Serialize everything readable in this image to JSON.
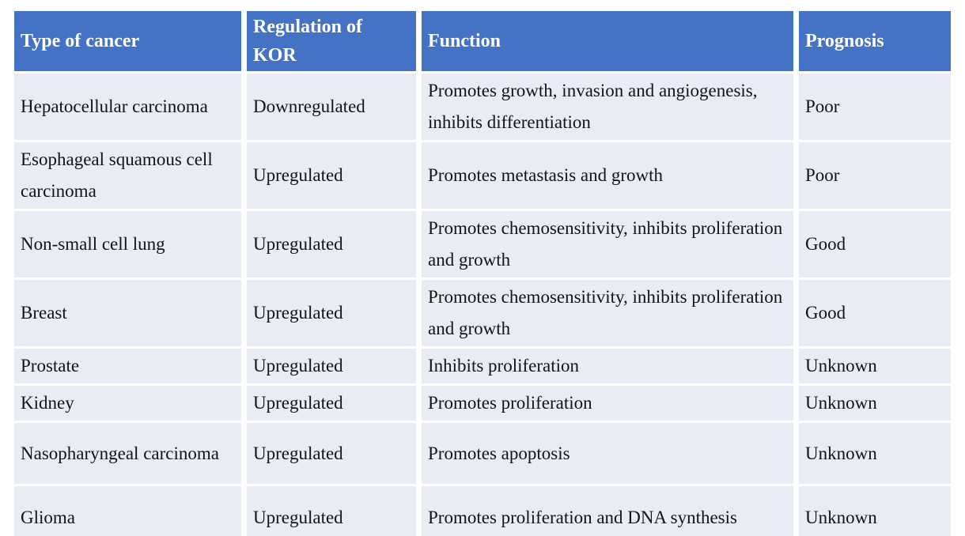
{
  "colors": {
    "header_bg": "#4472C4",
    "header_text": "#FFFFFF",
    "row_bg": "#E9EBF5",
    "body_text": "#141414",
    "gutter": "#FFFFFF"
  },
  "table": {
    "headers": [
      "Type of cancer",
      "Regulation of KOR",
      "Function",
      "Prognosis"
    ],
    "rows": [
      [
        "Hepatocellular carcinoma",
        "Downregulated",
        "Promotes growth, invasion and angiogenesis, inhibits differentiation",
        "Poor"
      ],
      [
        "Esophageal squamous cell carcinoma",
        "Upregulated",
        "Promotes metastasis and growth",
        "Poor"
      ],
      [
        "Non-small cell lung",
        "Upregulated",
        "Promotes chemosensitivity, inhibits proliferation and growth",
        "Good"
      ],
      [
        "Breast",
        "Upregulated",
        "Promotes chemosensitivity, inhibits proliferation and growth",
        "Good"
      ],
      [
        "Prostate",
        "Upregulated",
        "Inhibits proliferation",
        "Unknown"
      ],
      [
        "Kidney",
        "Upregulated",
        "Promotes proliferation",
        "Unknown"
      ],
      [
        "Nasopharyngeal carcinoma",
        "Upregulated",
        "Promotes apoptosis",
        "Unknown"
      ],
      [
        "Glioma",
        "Upregulated",
        "Promotes proliferation and DNA synthesis",
        "Unknown"
      ]
    ]
  },
  "chart_data": {
    "type": "table",
    "title": "",
    "columns": [
      "Type of cancer",
      "Regulation of KOR",
      "Function",
      "Prognosis"
    ],
    "rows": [
      [
        "Hepatocellular carcinoma",
        "Downregulated",
        "Promotes growth, invasion and angiogenesis, inhibits differentiation",
        "Poor"
      ],
      [
        "Esophageal squamous cell carcinoma",
        "Upregulated",
        "Promotes metastasis and growth",
        "Poor"
      ],
      [
        "Non-small cell lung",
        "Upregulated",
        "Promotes chemosensitivity, inhibits proliferation and growth",
        "Good"
      ],
      [
        "Breast",
        "Upregulated",
        "Promotes chemosensitivity, inhibits proliferation and growth",
        "Good"
      ],
      [
        "Prostate",
        "Upregulated",
        "Inhibits proliferation",
        "Unknown"
      ],
      [
        "Kidney",
        "Upregulated",
        "Promotes proliferation",
        "Unknown"
      ],
      [
        "Nasopharyngeal carcinoma",
        "Upregulated",
        "Promotes apoptosis",
        "Unknown"
      ],
      [
        "Glioma",
        "Upregulated",
        "Promotes proliferation and DNA synthesis",
        "Unknown"
      ]
    ],
    "layout_hints": {
      "header_fill": "#4472C4",
      "row_fill": "#E9EBF5",
      "grid": "white gutters between cells",
      "legend": "none"
    }
  }
}
